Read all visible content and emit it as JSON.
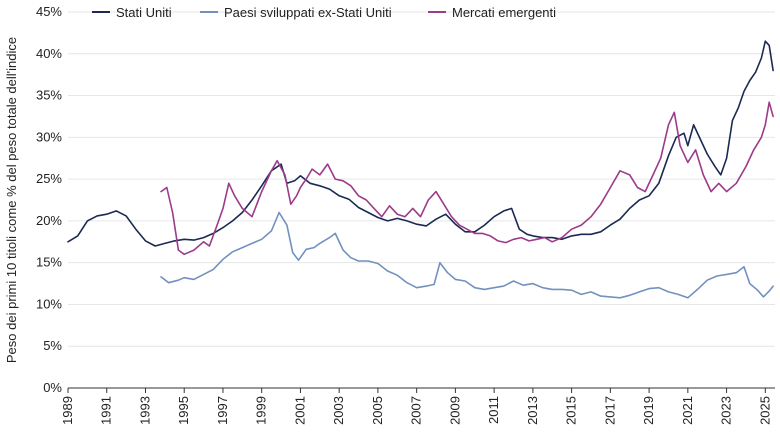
{
  "chart_data": {
    "type": "line",
    "ylabel": "Peso dei primi 10 titoli come % del peso totale dell'indice",
    "xlabel": "",
    "title": "",
    "ylim": [
      0,
      45
    ],
    "xlim": [
      1989,
      2025.5
    ],
    "grid": "horizontal",
    "legend_position": "top",
    "y_ticks": [
      0,
      5,
      10,
      15,
      20,
      25,
      30,
      35,
      40,
      45
    ],
    "y_tick_labels": [
      "0%",
      "5%",
      "10%",
      "15%",
      "20%",
      "25%",
      "30%",
      "35%",
      "40%",
      "45%"
    ],
    "x_ticks": [
      1989,
      1991,
      1993,
      1995,
      1997,
      1999,
      2001,
      2003,
      2005,
      2007,
      2009,
      2011,
      2013,
      2015,
      2017,
      2019,
      2021,
      2023,
      2025
    ],
    "x_tick_labels": [
      "1989",
      "1991",
      "1993",
      "1995",
      "1997",
      "1999",
      "2001",
      "2003",
      "2005",
      "2007",
      "2009",
      "2011",
      "2013",
      "2015",
      "2017",
      "2019",
      "2021",
      "2023",
      "2025"
    ],
    "series": [
      {
        "name": "Stati Uniti",
        "color": "#1b2a52",
        "points": [
          [
            1989.0,
            17.5
          ],
          [
            1989.5,
            18.2
          ],
          [
            1990.0,
            20.0
          ],
          [
            1990.5,
            20.6
          ],
          [
            1991.0,
            20.8
          ],
          [
            1991.5,
            21.2
          ],
          [
            1992.0,
            20.6
          ],
          [
            1992.5,
            19.0
          ],
          [
            1993.0,
            17.6
          ],
          [
            1993.5,
            17.0
          ],
          [
            1994.0,
            17.3
          ],
          [
            1994.5,
            17.6
          ],
          [
            1995.0,
            17.8
          ],
          [
            1995.5,
            17.7
          ],
          [
            1996.0,
            18.0
          ],
          [
            1996.5,
            18.5
          ],
          [
            1997.0,
            19.2
          ],
          [
            1997.5,
            20.0
          ],
          [
            1998.0,
            21.0
          ],
          [
            1998.5,
            22.5
          ],
          [
            1999.0,
            24.2
          ],
          [
            1999.5,
            26.0
          ],
          [
            2000.0,
            26.8
          ],
          [
            2000.3,
            24.5
          ],
          [
            2000.7,
            24.8
          ],
          [
            2001.0,
            25.4
          ],
          [
            2001.5,
            24.5
          ],
          [
            2002.0,
            24.2
          ],
          [
            2002.5,
            23.8
          ],
          [
            2003.0,
            23.0
          ],
          [
            2003.5,
            22.6
          ],
          [
            2004.0,
            21.6
          ],
          [
            2004.5,
            21.0
          ],
          [
            2005.0,
            20.4
          ],
          [
            2005.5,
            20.0
          ],
          [
            2006.0,
            20.3
          ],
          [
            2006.5,
            20.0
          ],
          [
            2007.0,
            19.6
          ],
          [
            2007.5,
            19.4
          ],
          [
            2008.0,
            20.2
          ],
          [
            2008.5,
            20.8
          ],
          [
            2009.0,
            19.6
          ],
          [
            2009.5,
            18.7
          ],
          [
            2010.0,
            18.7
          ],
          [
            2010.5,
            19.5
          ],
          [
            2011.0,
            20.5
          ],
          [
            2011.5,
            21.2
          ],
          [
            2011.9,
            21.5
          ],
          [
            2012.3,
            19.0
          ],
          [
            2012.7,
            18.4
          ],
          [
            2013.0,
            18.2
          ],
          [
            2013.5,
            18.0
          ],
          [
            2014.0,
            18.0
          ],
          [
            2014.5,
            17.8
          ],
          [
            2015.0,
            18.2
          ],
          [
            2015.5,
            18.4
          ],
          [
            2016.0,
            18.4
          ],
          [
            2016.5,
            18.7
          ],
          [
            2017.0,
            19.5
          ],
          [
            2017.5,
            20.2
          ],
          [
            2018.0,
            21.5
          ],
          [
            2018.5,
            22.5
          ],
          [
            2019.0,
            23.0
          ],
          [
            2019.5,
            24.5
          ],
          [
            2020.0,
            27.8
          ],
          [
            2020.4,
            30.0
          ],
          [
            2020.8,
            30.5
          ],
          [
            2021.0,
            29.0
          ],
          [
            2021.3,
            31.5
          ],
          [
            2021.7,
            29.5
          ],
          [
            2022.0,
            28.0
          ],
          [
            2022.4,
            26.5
          ],
          [
            2022.7,
            25.5
          ],
          [
            2023.0,
            27.5
          ],
          [
            2023.3,
            32.0
          ],
          [
            2023.6,
            33.5
          ],
          [
            2023.9,
            35.5
          ],
          [
            2024.2,
            36.8
          ],
          [
            2024.5,
            37.8
          ],
          [
            2024.8,
            39.5
          ],
          [
            2025.0,
            41.5
          ],
          [
            2025.2,
            41.0
          ],
          [
            2025.4,
            38.0
          ]
        ]
      },
      {
        "name": "Paesi sviluppati ex-Stati Uniti",
        "color": "#7391bf",
        "points": [
          [
            1993.8,
            13.3
          ],
          [
            1994.2,
            12.6
          ],
          [
            1994.7,
            12.9
          ],
          [
            1995.0,
            13.2
          ],
          [
            1995.5,
            13.0
          ],
          [
            1996.0,
            13.6
          ],
          [
            1996.5,
            14.2
          ],
          [
            1997.0,
            15.4
          ],
          [
            1997.5,
            16.3
          ],
          [
            1998.0,
            16.8
          ],
          [
            1998.5,
            17.3
          ],
          [
            1999.0,
            17.8
          ],
          [
            1999.5,
            18.8
          ],
          [
            1999.9,
            21.0
          ],
          [
            2000.3,
            19.5
          ],
          [
            2000.6,
            16.2
          ],
          [
            2000.9,
            15.3
          ],
          [
            2001.3,
            16.6
          ],
          [
            2001.7,
            16.8
          ],
          [
            2002.0,
            17.3
          ],
          [
            2002.5,
            18.0
          ],
          [
            2002.8,
            18.5
          ],
          [
            2003.2,
            16.5
          ],
          [
            2003.6,
            15.6
          ],
          [
            2004.0,
            15.2
          ],
          [
            2004.5,
            15.2
          ],
          [
            2005.0,
            14.9
          ],
          [
            2005.5,
            14.0
          ],
          [
            2006.0,
            13.5
          ],
          [
            2006.5,
            12.6
          ],
          [
            2007.0,
            12.0
          ],
          [
            2007.5,
            12.2
          ],
          [
            2007.9,
            12.4
          ],
          [
            2008.2,
            15.0
          ],
          [
            2008.6,
            13.8
          ],
          [
            2009.0,
            13.0
          ],
          [
            2009.5,
            12.8
          ],
          [
            2010.0,
            12.0
          ],
          [
            2010.5,
            11.8
          ],
          [
            2011.0,
            12.0
          ],
          [
            2011.5,
            12.2
          ],
          [
            2012.0,
            12.8
          ],
          [
            2012.5,
            12.3
          ],
          [
            2013.0,
            12.5
          ],
          [
            2013.5,
            12.0
          ],
          [
            2014.0,
            11.8
          ],
          [
            2014.5,
            11.8
          ],
          [
            2015.0,
            11.7
          ],
          [
            2015.5,
            11.2
          ],
          [
            2016.0,
            11.5
          ],
          [
            2016.5,
            11.0
          ],
          [
            2017.0,
            10.9
          ],
          [
            2017.5,
            10.8
          ],
          [
            2018.0,
            11.1
          ],
          [
            2018.5,
            11.5
          ],
          [
            2019.0,
            11.9
          ],
          [
            2019.5,
            12.0
          ],
          [
            2020.0,
            11.5
          ],
          [
            2020.5,
            11.2
          ],
          [
            2021.0,
            10.8
          ],
          [
            2021.5,
            11.8
          ],
          [
            2022.0,
            12.9
          ],
          [
            2022.5,
            13.4
          ],
          [
            2023.0,
            13.6
          ],
          [
            2023.5,
            13.8
          ],
          [
            2023.9,
            14.5
          ],
          [
            2024.2,
            12.5
          ],
          [
            2024.6,
            11.7
          ],
          [
            2024.9,
            10.9
          ],
          [
            2025.2,
            11.6
          ],
          [
            2025.4,
            12.2
          ]
        ]
      },
      {
        "name": "Mercati emergenti",
        "color": "#9b3b8a",
        "points": [
          [
            1993.8,
            23.5
          ],
          [
            1994.1,
            24.0
          ],
          [
            1994.4,
            21.0
          ],
          [
            1994.7,
            16.5
          ],
          [
            1995.0,
            16.0
          ],
          [
            1995.5,
            16.5
          ],
          [
            1996.0,
            17.5
          ],
          [
            1996.3,
            17.0
          ],
          [
            1996.7,
            19.5
          ],
          [
            1997.0,
            21.5
          ],
          [
            1997.3,
            24.5
          ],
          [
            1997.6,
            23.0
          ],
          [
            1998.0,
            21.5
          ],
          [
            1998.5,
            20.5
          ],
          [
            1999.0,
            23.5
          ],
          [
            1999.5,
            26.0
          ],
          [
            1999.8,
            27.2
          ],
          [
            2000.2,
            25.5
          ],
          [
            2000.5,
            22.0
          ],
          [
            2000.8,
            23.0
          ],
          [
            2001.0,
            24.0
          ],
          [
            2001.3,
            25.0
          ],
          [
            2001.6,
            26.2
          ],
          [
            2002.0,
            25.5
          ],
          [
            2002.4,
            26.8
          ],
          [
            2002.8,
            25.0
          ],
          [
            2003.2,
            24.8
          ],
          [
            2003.6,
            24.2
          ],
          [
            2004.0,
            23.0
          ],
          [
            2004.4,
            22.5
          ],
          [
            2004.8,
            21.5
          ],
          [
            2005.2,
            20.5
          ],
          [
            2005.6,
            21.8
          ],
          [
            2006.0,
            20.8
          ],
          [
            2006.4,
            20.5
          ],
          [
            2006.8,
            21.5
          ],
          [
            2007.2,
            20.5
          ],
          [
            2007.6,
            22.5
          ],
          [
            2008.0,
            23.5
          ],
          [
            2008.4,
            22.0
          ],
          [
            2008.8,
            20.5
          ],
          [
            2009.2,
            19.5
          ],
          [
            2009.6,
            19.0
          ],
          [
            2010.0,
            18.5
          ],
          [
            2010.4,
            18.5
          ],
          [
            2010.8,
            18.2
          ],
          [
            2011.2,
            17.6
          ],
          [
            2011.6,
            17.4
          ],
          [
            2012.0,
            17.8
          ],
          [
            2012.4,
            18.0
          ],
          [
            2012.8,
            17.6
          ],
          [
            2013.2,
            17.8
          ],
          [
            2013.6,
            18.0
          ],
          [
            2014.0,
            17.5
          ],
          [
            2014.5,
            18.0
          ],
          [
            2015.0,
            19.0
          ],
          [
            2015.5,
            19.5
          ],
          [
            2016.0,
            20.5
          ],
          [
            2016.5,
            22.0
          ],
          [
            2017.0,
            24.0
          ],
          [
            2017.5,
            26.0
          ],
          [
            2018.0,
            25.5
          ],
          [
            2018.4,
            24.0
          ],
          [
            2018.8,
            23.5
          ],
          [
            2019.2,
            25.5
          ],
          [
            2019.6,
            27.5
          ],
          [
            2020.0,
            31.5
          ],
          [
            2020.3,
            33.0
          ],
          [
            2020.6,
            29.0
          ],
          [
            2021.0,
            27.0
          ],
          [
            2021.4,
            28.5
          ],
          [
            2021.8,
            25.5
          ],
          [
            2022.2,
            23.5
          ],
          [
            2022.6,
            24.5
          ],
          [
            2023.0,
            23.5
          ],
          [
            2023.5,
            24.5
          ],
          [
            2024.0,
            26.5
          ],
          [
            2024.4,
            28.5
          ],
          [
            2024.8,
            30.0
          ],
          [
            2025.0,
            31.5
          ],
          [
            2025.2,
            34.2
          ],
          [
            2025.4,
            32.5
          ]
        ]
      }
    ]
  }
}
